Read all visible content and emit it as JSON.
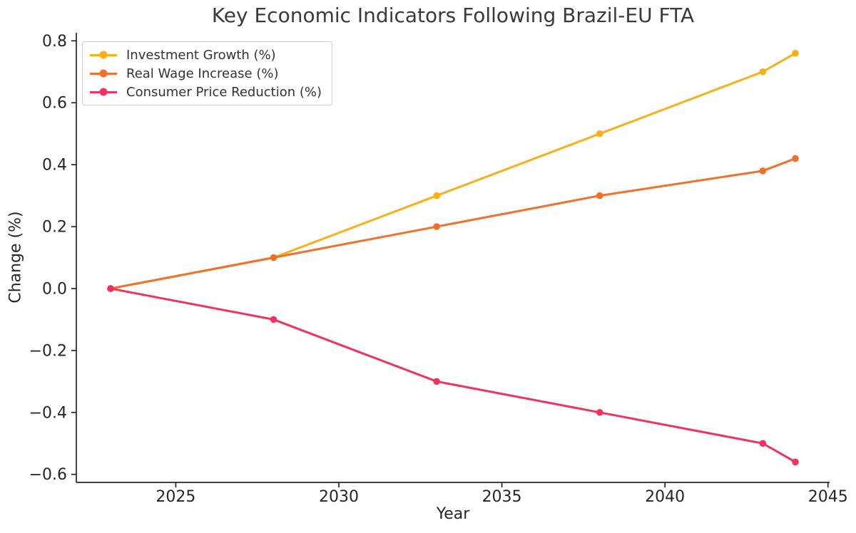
{
  "chart_data": {
    "type": "line",
    "title": "Key Economic Indicators Following Brazil-EU FTA",
    "xlabel": "Year",
    "ylabel": "Change (%)",
    "x": [
      2023,
      2028,
      2033,
      2038,
      2043,
      2044
    ],
    "series": [
      {
        "name": "Investment Growth (%)",
        "color": "#FBAF16",
        "values": [
          0.0,
          0.1,
          0.3,
          0.5,
          0.7,
          0.76
        ]
      },
      {
        "name": "Real Wage Increase (%)",
        "color": "#F1702A",
        "values": [
          0.0,
          0.1,
          0.2,
          0.3,
          0.38,
          0.42
        ]
      },
      {
        "name": "Consumer Price Reduction (%)",
        "color": "#F0335E",
        "values": [
          0.0,
          -0.1,
          -0.3,
          -0.4,
          -0.5,
          -0.56
        ]
      }
    ],
    "xticks": {
      "values": [
        2025,
        2030,
        2035,
        2040,
        2045
      ],
      "labels": [
        "2025",
        "2030",
        "2035",
        "2040",
        "2045"
      ]
    },
    "yticks": {
      "values": [
        -0.6,
        -0.4,
        -0.2,
        0.0,
        0.2,
        0.4,
        0.6,
        0.8
      ],
      "labels": [
        "−0.6",
        "−0.4",
        "−0.2",
        "0.0",
        "0.2",
        "0.4",
        "0.6",
        "0.8"
      ]
    },
    "xlim": [
      2021.95,
      2045.05
    ],
    "ylim": [
      -0.626,
      0.826
    ],
    "grid": false,
    "legend": {
      "position": "upper left"
    },
    "marker": "circle",
    "axis_color": "#262626",
    "tick_label_color": "#262626",
    "title_color": "#3a3a3a"
  }
}
